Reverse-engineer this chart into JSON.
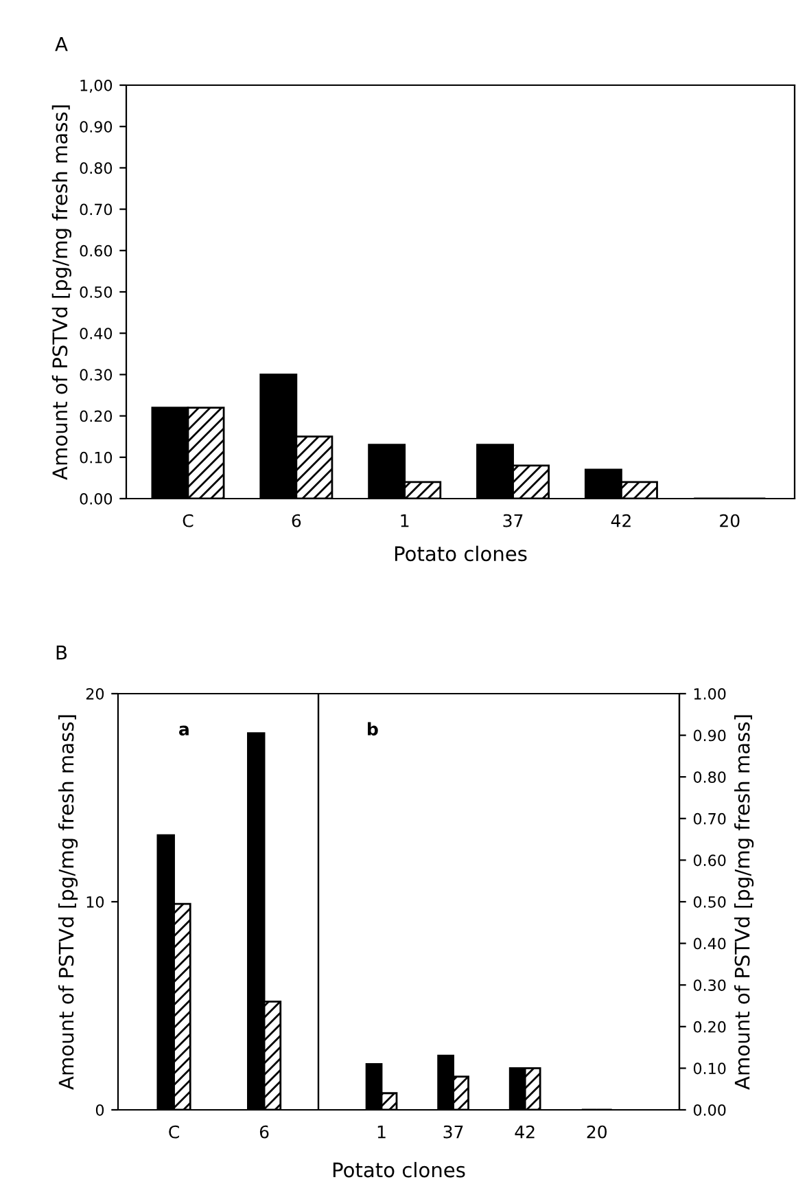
{
  "chart_data": [
    {
      "type": "bar",
      "title": "A",
      "xlabel": "Potato clones",
      "ylabel": "Amount of PSTVd [pg/mg fresh mass]",
      "categories": [
        "C",
        "6",
        "1",
        "37",
        "42",
        "20"
      ],
      "series": [
        {
          "color": "#000000",
          "values": [
            0.22,
            0.3,
            0.13,
            0.13,
            0.07,
            0
          ]
        },
        {
          "color": "#000000",
          "values": [
            0.22,
            0.15,
            0.04,
            0.08,
            0.04,
            0
          ]
        }
      ],
      "ylim": [
        0,
        1.0
      ],
      "yticks": [
        {
          "value": 0,
          "label": "0.00"
        },
        {
          "value": 0.1,
          "label": "0.10"
        },
        {
          "value": 0.2,
          "label": "0.20"
        },
        {
          "value": 0.3,
          "label": "0.30"
        },
        {
          "value": 0.4,
          "label": "0.40"
        },
        {
          "value": 0.5,
          "label": "0.50"
        },
        {
          "value": 0.6,
          "label": "0.60"
        },
        {
          "value": 0.7,
          "label": "0.70"
        },
        {
          "value": 0.8,
          "label": "0.80"
        },
        {
          "value": 0.9,
          "label": "0.90"
        },
        {
          "value": 1.0,
          "label": "1,00"
        }
      ],
      "grid": false,
      "legend": false
    },
    {
      "type": "bar",
      "title": "B",
      "ylabel": "Amount of PSTVd [pg/mg fresh mass]",
      "categories": [
        "C",
        "6"
      ],
      "annotations": [
        "a"
      ],
      "series": [
        {
          "color": "#000000",
          "values": [
            13.2,
            18.1
          ]
        },
        {
          "color": "#000000",
          "values": [
            9.9,
            5.2
          ]
        }
      ],
      "ylim": [
        0,
        20
      ],
      "yticks": [
        0,
        10,
        20
      ],
      "grid": false,
      "legend": false
    },
    {
      "type": "bar",
      "xlabel": "Potato clones",
      "y2label": "Amount of PSTVd [pg/mg fresh mass]",
      "categories": [
        "1",
        "37",
        "42",
        "20"
      ],
      "annotations": [
        "b"
      ],
      "series": [
        {
          "color": "#000000",
          "values": [
            0.11,
            0.13,
            0.1,
            0
          ],
          "axis": "y2"
        },
        {
          "color": "#000000",
          "values": [
            0.04,
            0.08,
            0.1,
            0
          ],
          "axis": "y2"
        }
      ],
      "y2lim": [
        0,
        1.0
      ],
      "y2ticks": [
        {
          "value": 0,
          "label": "0.00"
        },
        {
          "value": 0.1,
          "label": "0.10"
        },
        {
          "value": 0.2,
          "label": "0.20"
        },
        {
          "value": 0.3,
          "label": "0.30"
        },
        {
          "value": 0.4,
          "label": "0.40"
        },
        {
          "value": 0.5,
          "label": "0.50"
        },
        {
          "value": 0.6,
          "label": "0.60"
        },
        {
          "value": 0.7,
          "label": "0.70"
        },
        {
          "value": 0.8,
          "label": "0.80"
        },
        {
          "value": 0.9,
          "label": "0.90"
        },
        {
          "value": 1.0,
          "label": "1.00"
        }
      ],
      "grid": false,
      "legend": false
    }
  ]
}
